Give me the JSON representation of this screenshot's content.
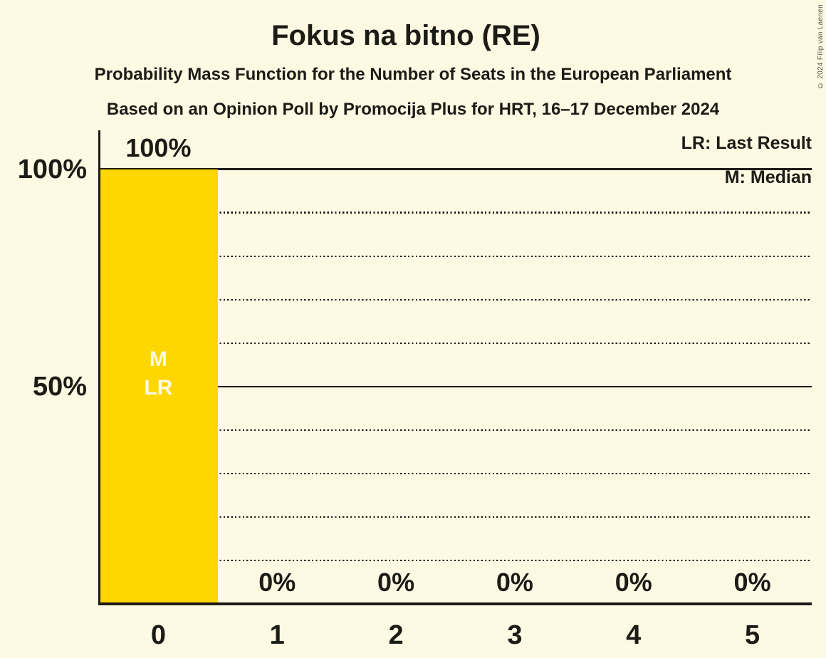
{
  "copyright": "© 2024 Filip van Laenen",
  "colors": {
    "background": "#FDF9E3",
    "bar": "#FFD700",
    "text": "#1D1B16",
    "bar_label": "#FDF9E3",
    "copyright_text": "#56544A"
  },
  "chart_data": {
    "type": "bar",
    "title": "Fokus na bitno (RE)",
    "subtitle": "Probability Mass Function for the Number of Seats in the European Parliament",
    "source_line": "Based on an Opinion Poll by Promocija Plus for HRT, 16–17 December 2024",
    "categories": [
      "0",
      "1",
      "2",
      "3",
      "4",
      "5"
    ],
    "values": [
      100,
      0,
      0,
      0,
      0,
      0
    ],
    "value_labels": [
      "100%",
      "0%",
      "0%",
      "0%",
      "0%",
      "0%"
    ],
    "xlabel": "",
    "ylabel": "",
    "ylim": [
      0,
      100
    ],
    "ytick_labels": [
      {
        "value": 100,
        "label": "100%"
      },
      {
        "value": 50,
        "label": "50%"
      }
    ],
    "solid_gridlines": [
      100,
      50
    ],
    "dotted_gridlines": [
      90,
      80,
      70,
      60,
      40,
      30,
      20,
      10
    ],
    "grid": "horizontal",
    "legend_position": "top-right",
    "legend": {
      "lr": "LR: Last Result",
      "m": "M: Median"
    },
    "annotations": [
      {
        "category_index": 0,
        "lines": [
          "M",
          "LR"
        ],
        "y_percent": 50
      }
    ],
    "median_category": "0",
    "last_result_category": "0"
  }
}
